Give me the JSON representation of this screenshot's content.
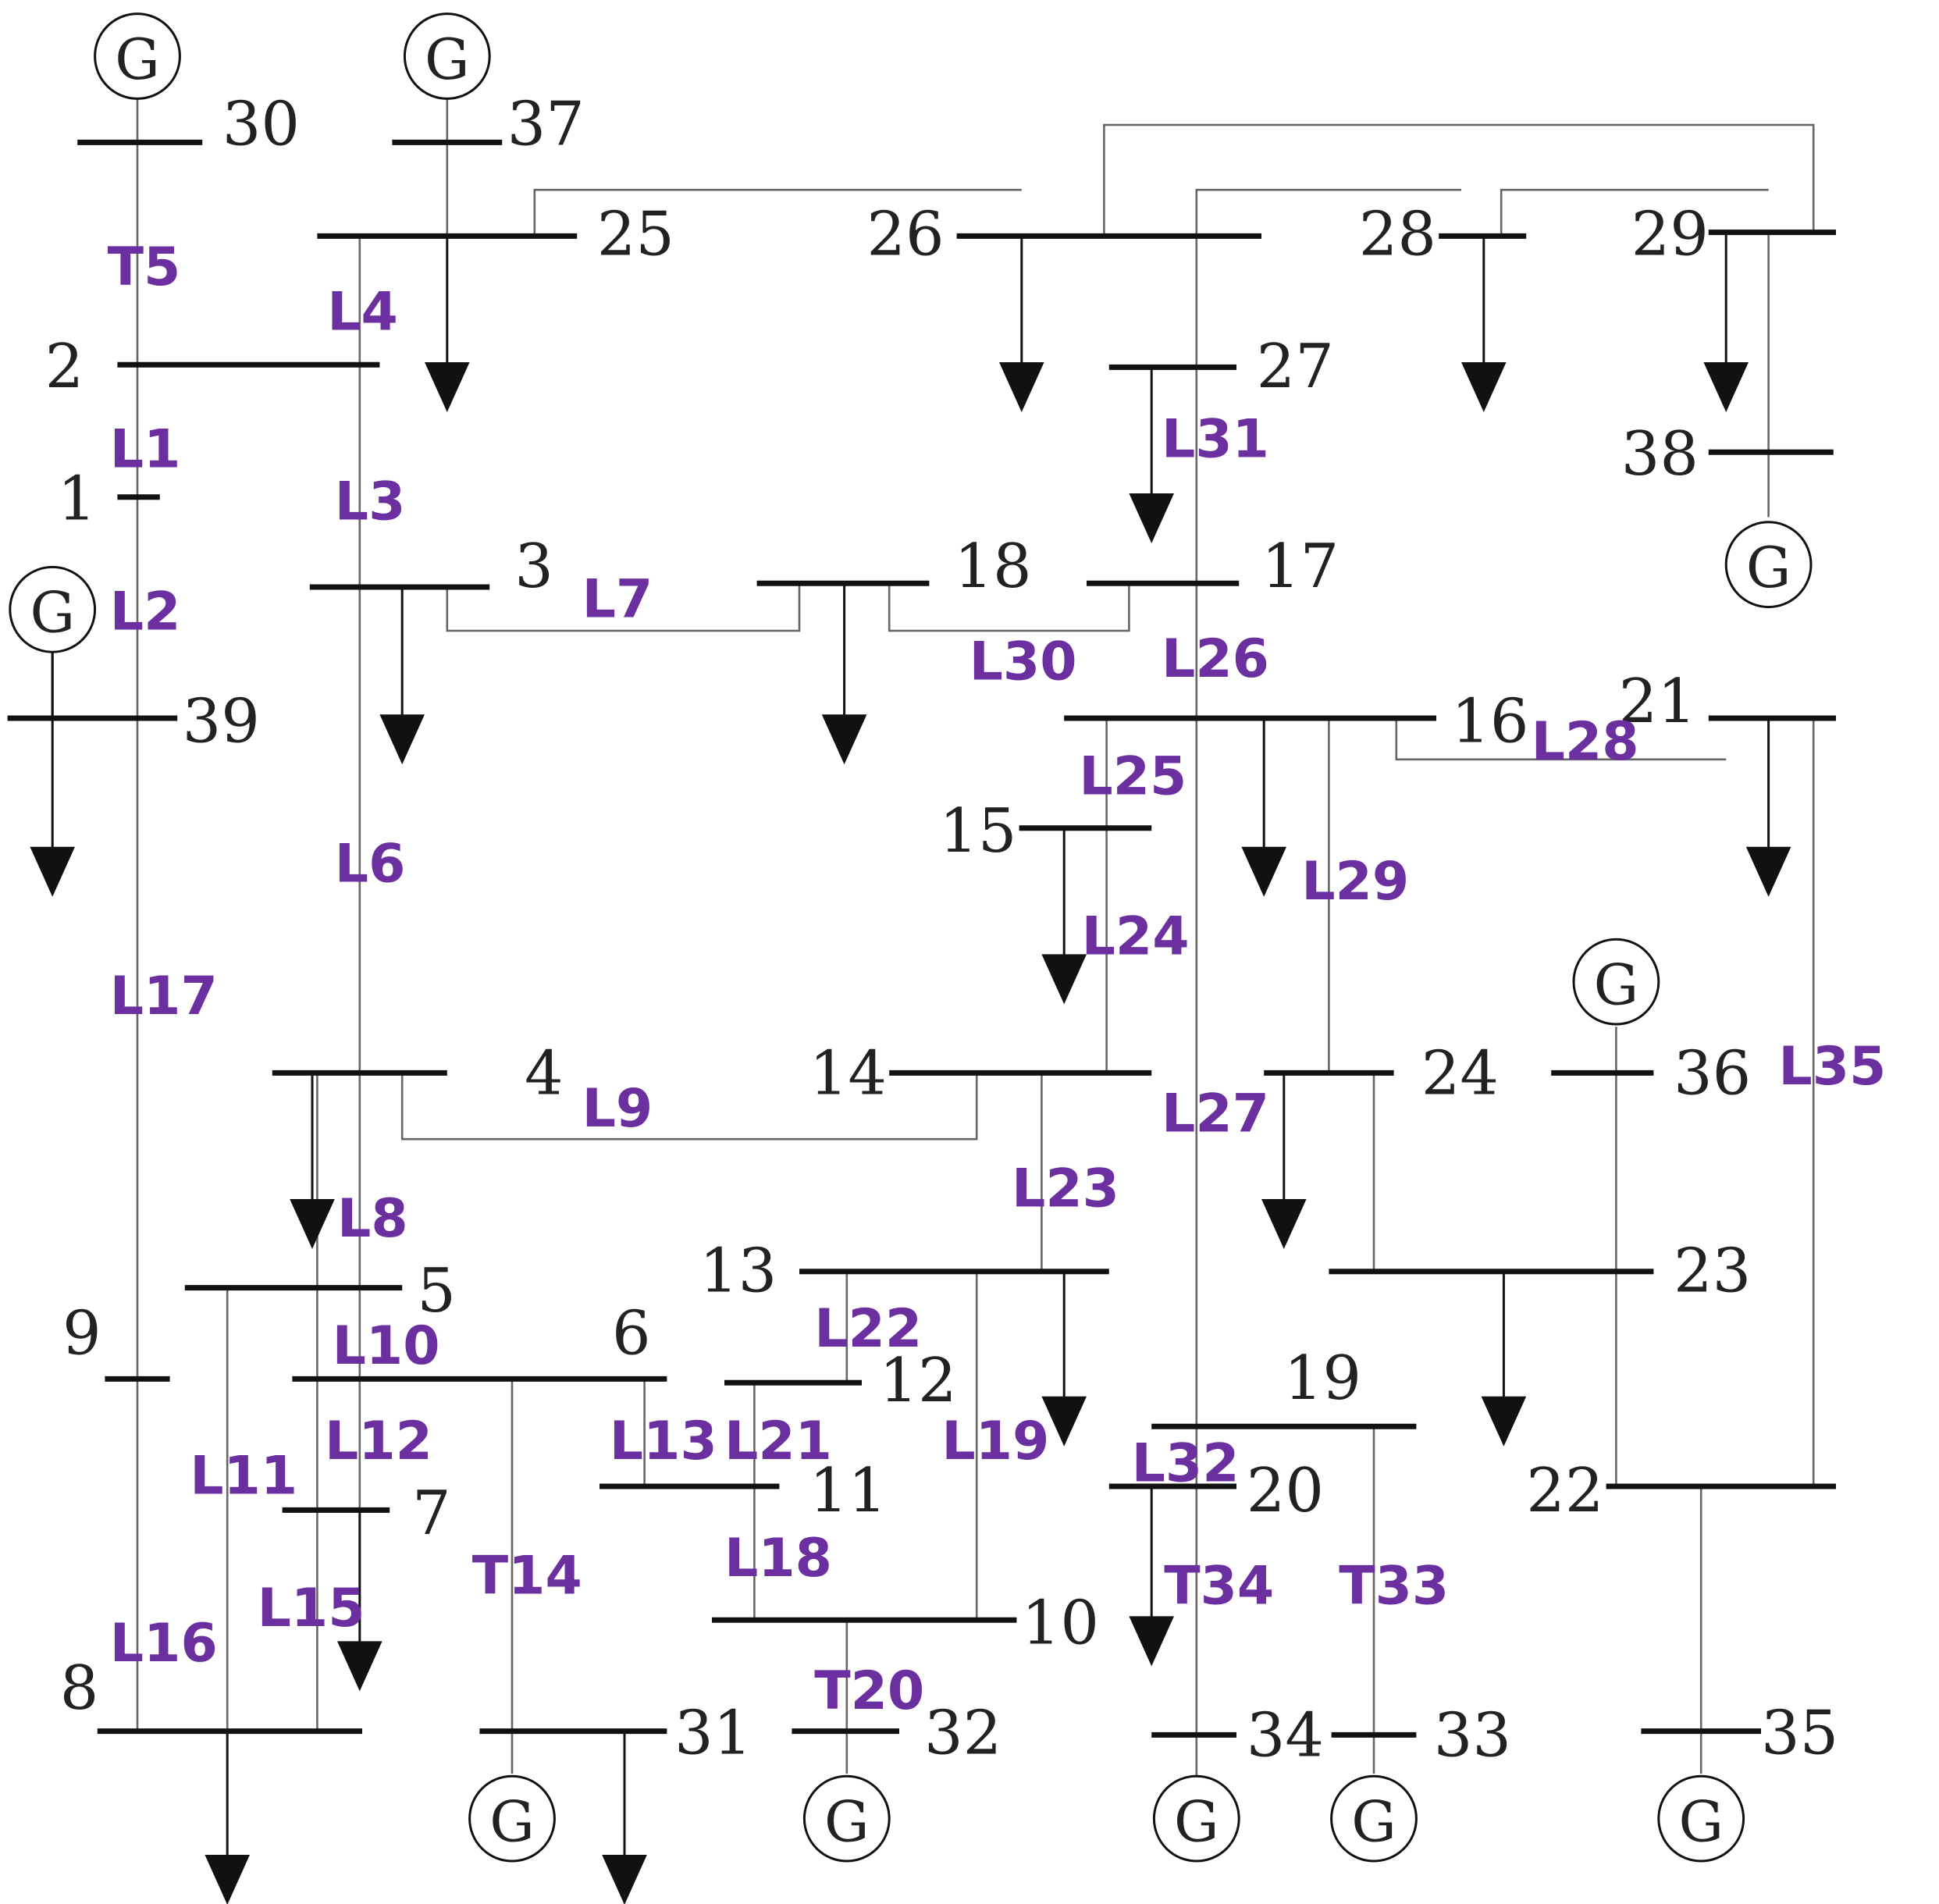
{
  "colors": {
    "line_label": "#6b2fa0",
    "ink": "#111111",
    "thin_line": "#666666"
  },
  "gen_letter": "G",
  "bus_labels": [
    {
      "id": "30",
      "text": "30"
    },
    {
      "id": "37",
      "text": "37"
    },
    {
      "id": "25",
      "text": "25"
    },
    {
      "id": "26",
      "text": "26"
    },
    {
      "id": "28",
      "text": "28"
    },
    {
      "id": "29",
      "text": "29"
    },
    {
      "id": "2",
      "text": "2"
    },
    {
      "id": "27",
      "text": "27"
    },
    {
      "id": "1",
      "text": "1"
    },
    {
      "id": "38",
      "text": "38"
    },
    {
      "id": "3",
      "text": "3"
    },
    {
      "id": "18",
      "text": "18"
    },
    {
      "id": "17",
      "text": "17"
    },
    {
      "id": "39",
      "text": "39"
    },
    {
      "id": "16",
      "text": "16"
    },
    {
      "id": "21",
      "text": "21"
    },
    {
      "id": "15",
      "text": "15"
    },
    {
      "id": "4",
      "text": "4"
    },
    {
      "id": "14",
      "text": "14"
    },
    {
      "id": "24",
      "text": "24"
    },
    {
      "id": "36",
      "text": "36"
    },
    {
      "id": "5",
      "text": "5"
    },
    {
      "id": "13",
      "text": "13"
    },
    {
      "id": "23",
      "text": "23"
    },
    {
      "id": "9",
      "text": "9"
    },
    {
      "id": "6",
      "text": "6"
    },
    {
      "id": "12",
      "text": "12"
    },
    {
      "id": "19",
      "text": "19"
    },
    {
      "id": "7",
      "text": "7"
    },
    {
      "id": "11",
      "text": "11"
    },
    {
      "id": "20",
      "text": "20"
    },
    {
      "id": "22",
      "text": "22"
    },
    {
      "id": "10",
      "text": "10"
    },
    {
      "id": "8",
      "text": "8"
    },
    {
      "id": "31",
      "text": "31"
    },
    {
      "id": "32",
      "text": "32"
    },
    {
      "id": "34",
      "text": "34"
    },
    {
      "id": "33",
      "text": "33"
    },
    {
      "id": "35",
      "text": "35"
    }
  ],
  "line_labels": [
    "T5",
    "L4",
    "L1",
    "L3",
    "L2",
    "L7",
    "L31",
    "L30",
    "L26",
    "L28",
    "L25",
    "L6",
    "L29",
    "L24",
    "L17",
    "L9",
    "L27",
    "L35",
    "L23",
    "L8",
    "L22",
    "L10",
    "L13",
    "L21",
    "L19",
    "L12",
    "L11",
    "L32",
    "T14",
    "L18",
    "T34",
    "T33",
    "L15",
    "L16",
    "T20"
  ]
}
